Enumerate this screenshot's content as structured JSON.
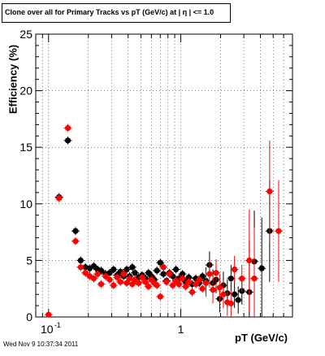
{
  "chart_data": {
    "type": "scatter",
    "title": "Clone  over all for Primary Tracks vs pT (GeV/c) at |  η | <= 1.0",
    "xlabel": "pT (GeV/c)",
    "ylabel": "Efficiency (%)",
    "x_scale": "log",
    "xlim": [
      0.08,
      7.0
    ],
    "ylim": [
      0,
      25
    ],
    "x_tick_labels": [
      "10",
      "-1",
      "1"
    ],
    "y_tick_labels": [
      "0",
      "5",
      "10",
      "15",
      "20",
      "25"
    ],
    "grid": true,
    "series": [
      {
        "color": "#000000",
        "points": [
          [
            0.12,
            10.6
          ],
          [
            0.14,
            15.6
          ],
          [
            0.16,
            7.6
          ],
          [
            0.175,
            5.0
          ],
          [
            0.19,
            4.4
          ],
          [
            0.205,
            4.3
          ],
          [
            0.22,
            4.5
          ],
          [
            0.235,
            4.2
          ],
          [
            0.25,
            4.1
          ],
          [
            0.27,
            3.8
          ],
          [
            0.29,
            3.9
          ],
          [
            0.31,
            4.2
          ],
          [
            0.33,
            3.7
          ],
          [
            0.35,
            4.0
          ],
          [
            0.37,
            3.6
          ],
          [
            0.39,
            4.2
          ],
          [
            0.41,
            3.6
          ],
          [
            0.43,
            4.4
          ],
          [
            0.45,
            3.9
          ],
          [
            0.48,
            3.5
          ],
          [
            0.51,
            3.7
          ],
          [
            0.54,
            3.4
          ],
          [
            0.57,
            3.9
          ],
          [
            0.6,
            3.6
          ],
          [
            0.63,
            3.3
          ],
          [
            0.66,
            4.1
          ],
          [
            0.7,
            4.8
          ],
          [
            0.74,
            3.8
          ],
          [
            0.78,
            3.2
          ],
          [
            0.82,
            3.9
          ],
          [
            0.87,
            3.6
          ],
          [
            0.92,
            4.2
          ],
          [
            0.97,
            3.4
          ],
          [
            1.03,
            3.8
          ],
          [
            1.09,
            3.1
          ],
          [
            1.15,
            3.5
          ],
          [
            1.22,
            2.9
          ],
          [
            1.3,
            3.4
          ],
          [
            1.38,
            3.0
          ],
          [
            1.46,
            3.6
          ],
          [
            1.55,
            3.2
          ],
          [
            1.65,
            4.6
          ],
          [
            1.75,
            3.0
          ],
          [
            1.85,
            3.3
          ],
          [
            1.97,
            1.6
          ],
          [
            2.1,
            2.8
          ],
          [
            2.25,
            2.1
          ],
          [
            2.4,
            3.4
          ],
          [
            2.55,
            2.0
          ],
          [
            2.72,
            1.5
          ],
          [
            2.9,
            2.3
          ],
          [
            3.3,
            2.2
          ],
          [
            3.6,
            4.9
          ],
          [
            4.1,
            4.3
          ],
          [
            4.7,
            7.6
          ]
        ]
      },
      {
        "color": "#ff0000",
        "points": [
          [
            0.1,
            0.2
          ],
          [
            0.12,
            10.5
          ],
          [
            0.14,
            16.7
          ],
          [
            0.16,
            6.7
          ],
          [
            0.175,
            4.4
          ],
          [
            0.19,
            3.9
          ],
          [
            0.205,
            3.6
          ],
          [
            0.22,
            3.4
          ],
          [
            0.235,
            3.8
          ],
          [
            0.25,
            2.9
          ],
          [
            0.27,
            3.6
          ],
          [
            0.29,
            3.3
          ],
          [
            0.31,
            2.8
          ],
          [
            0.33,
            3.5
          ],
          [
            0.35,
            3.1
          ],
          [
            0.37,
            3.8
          ],
          [
            0.39,
            3.0
          ],
          [
            0.41,
            3.4
          ],
          [
            0.43,
            2.9
          ],
          [
            0.45,
            3.3
          ],
          [
            0.48,
            3.0
          ],
          [
            0.51,
            3.5
          ],
          [
            0.54,
            3.1
          ],
          [
            0.57,
            2.7
          ],
          [
            0.6,
            3.3
          ],
          [
            0.63,
            3.0
          ],
          [
            0.66,
            2.8
          ],
          [
            0.7,
            1.8
          ],
          [
            0.74,
            4.4
          ],
          [
            0.78,
            3.1
          ],
          [
            0.82,
            3.8
          ],
          [
            0.87,
            2.8
          ],
          [
            0.92,
            3.2
          ],
          [
            0.97,
            2.9
          ],
          [
            1.03,
            3.4
          ],
          [
            1.09,
            2.7
          ],
          [
            1.15,
            3.1
          ],
          [
            1.22,
            2.2
          ],
          [
            1.3,
            2.9
          ],
          [
            1.38,
            3.3
          ],
          [
            1.46,
            2.5
          ],
          [
            1.55,
            3.0
          ],
          [
            1.65,
            3.8
          ],
          [
            1.75,
            2.4
          ],
          [
            1.85,
            3.9
          ],
          [
            1.97,
            2.6
          ],
          [
            2.1,
            2.0
          ],
          [
            2.25,
            1.3
          ],
          [
            2.4,
            1.2
          ],
          [
            2.55,
            4.2
          ],
          [
            2.9,
            3.4
          ],
          [
            3.3,
            5.0
          ],
          [
            3.6,
            3.4
          ],
          [
            4.7,
            11.1
          ],
          [
            5.5,
            7.6
          ]
        ]
      }
    ]
  },
  "timestamp": "Wed Nov  9 10:37:34 2011"
}
